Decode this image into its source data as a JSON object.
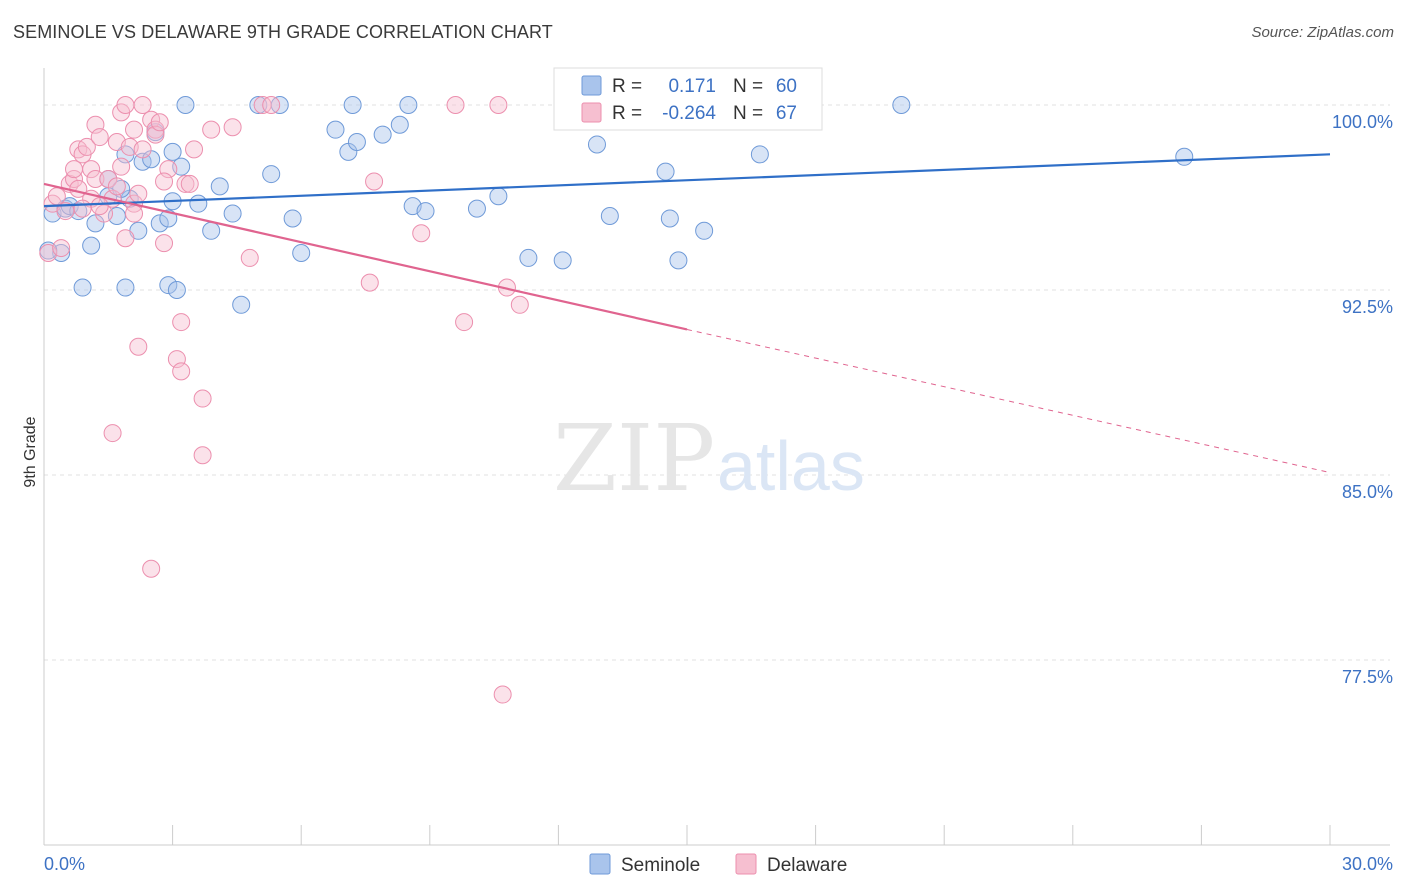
{
  "title": "SEMINOLE VS DELAWARE 9TH GRADE CORRELATION CHART",
  "source": "Source: ZipAtlas.com",
  "watermark": {
    "zip": "ZIP",
    "atlas": "atlas"
  },
  "chart_data": {
    "type": "scatter",
    "ylabel": "9th Grade",
    "xlim": [
      0,
      30
    ],
    "ylim": [
      70.0,
      101.5
    ],
    "x_tick_labels": [
      "0.0%",
      "30.0%"
    ],
    "y_ticks": [
      {
        "value": 100.0,
        "label": "100.0%"
      },
      {
        "value": 92.5,
        "label": "92.5%"
      },
      {
        "value": 85.0,
        "label": "85.0%"
      },
      {
        "value": 77.5,
        "label": "77.5%"
      }
    ],
    "grid": true,
    "legend": {
      "placement": "top-center",
      "rows": [
        {
          "r_label": "R =",
          "r_value": "0.171",
          "n_label": "N =",
          "n_value": "60"
        },
        {
          "r_label": "R =",
          "r_value": "-0.264",
          "n_label": "N =",
          "n_value": "67"
        }
      ]
    },
    "colors": {
      "seminole": "#a9c4ec",
      "seminole_stroke": "#6f9ad8",
      "seminole_line": "#2f6fc8",
      "delaware": "#f6bfd0",
      "delaware_stroke": "#ec8fae",
      "delaware_line": "#e0648f",
      "tick_color": "#3d72c4"
    },
    "series": [
      {
        "name": "Seminole",
        "trend": {
          "x": [
            0.0,
            30.0
          ],
          "y": [
            95.9,
            98.0
          ]
        },
        "points": [
          [
            0.2,
            95.6
          ],
          [
            0.4,
            94.0
          ],
          [
            0.5,
            95.8
          ],
          [
            0.6,
            95.9
          ],
          [
            0.8,
            95.7
          ],
          [
            0.9,
            92.6
          ],
          [
            1.1,
            94.3
          ],
          [
            1.2,
            95.2
          ],
          [
            1.5,
            96.3
          ],
          [
            1.5,
            97.0
          ],
          [
            1.7,
            95.5
          ],
          [
            1.9,
            92.6
          ],
          [
            1.9,
            98.0
          ],
          [
            2.0,
            96.2
          ],
          [
            2.2,
            94.9
          ],
          [
            2.3,
            97.7
          ],
          [
            2.5,
            97.8
          ],
          [
            2.6,
            98.9
          ],
          [
            2.7,
            95.2
          ],
          [
            2.9,
            92.7
          ],
          [
            3.0,
            98.1
          ],
          [
            3.1,
            92.5
          ],
          [
            3.2,
            97.5
          ],
          [
            3.3,
            100.0
          ],
          [
            3.6,
            96.0
          ],
          [
            3.9,
            94.9
          ],
          [
            4.1,
            96.7
          ],
          [
            4.4,
            95.6
          ],
          [
            4.6,
            91.9
          ],
          [
            5.0,
            100.0
          ],
          [
            5.3,
            97.2
          ],
          [
            5.5,
            100.0
          ],
          [
            5.8,
            95.4
          ],
          [
            6.0,
            94.0
          ],
          [
            6.8,
            99.0
          ],
          [
            7.1,
            98.1
          ],
          [
            7.3,
            98.5
          ],
          [
            7.2,
            100.0
          ],
          [
            7.9,
            98.8
          ],
          [
            8.3,
            99.2
          ],
          [
            8.5,
            100.0
          ],
          [
            8.6,
            95.9
          ],
          [
            8.9,
            95.7
          ],
          [
            10.1,
            95.8
          ],
          [
            10.6,
            96.3
          ],
          [
            11.3,
            93.8
          ],
          [
            12.1,
            93.7
          ],
          [
            12.9,
            98.4
          ],
          [
            13.2,
            95.5
          ],
          [
            14.5,
            97.3
          ],
          [
            14.6,
            95.4
          ],
          [
            14.8,
            93.7
          ],
          [
            15.4,
            94.9
          ],
          [
            16.7,
            98.0
          ],
          [
            20.0,
            100.0
          ],
          [
            26.6,
            97.9
          ],
          [
            0.1,
            94.1
          ],
          [
            1.8,
            96.6
          ],
          [
            3.0,
            96.1
          ],
          [
            2.9,
            95.4
          ]
        ]
      },
      {
        "name": "Delaware",
        "trend": {
          "x": [
            0.0,
            15.0
          ],
          "y": [
            96.8,
            90.9
          ]
        },
        "trend_dashed": {
          "x": [
            15.0,
            30.0
          ],
          "y": [
            90.9,
            85.1
          ]
        },
        "points": [
          [
            0.1,
            94.0
          ],
          [
            0.2,
            96.0
          ],
          [
            0.3,
            96.3
          ],
          [
            0.4,
            94.2
          ],
          [
            0.5,
            95.7
          ],
          [
            0.6,
            96.8
          ],
          [
            0.7,
            97.0
          ],
          [
            0.7,
            97.4
          ],
          [
            0.8,
            98.2
          ],
          [
            0.8,
            96.6
          ],
          [
            0.9,
            98.0
          ],
          [
            1.0,
            98.3
          ],
          [
            1.1,
            97.4
          ],
          [
            1.1,
            96.2
          ],
          [
            1.2,
            97.0
          ],
          [
            1.2,
            99.2
          ],
          [
            1.3,
            98.7
          ],
          [
            1.4,
            95.6
          ],
          [
            1.5,
            97.0
          ],
          [
            1.6,
            96.2
          ],
          [
            1.7,
            96.7
          ],
          [
            1.7,
            98.5
          ],
          [
            1.8,
            97.5
          ],
          [
            1.8,
            99.7
          ],
          [
            1.9,
            100.0
          ],
          [
            1.9,
            94.6
          ],
          [
            2.0,
            98.3
          ],
          [
            2.1,
            99.0
          ],
          [
            2.1,
            96.0
          ],
          [
            2.1,
            95.6
          ],
          [
            2.2,
            96.4
          ],
          [
            2.3,
            98.2
          ],
          [
            2.3,
            100.0
          ],
          [
            2.5,
            99.4
          ],
          [
            2.6,
            99.0
          ],
          [
            2.6,
            98.8
          ],
          [
            2.7,
            99.3
          ],
          [
            2.8,
            94.4
          ],
          [
            2.9,
            97.4
          ],
          [
            3.1,
            89.7
          ],
          [
            3.2,
            89.2
          ],
          [
            3.2,
            91.2
          ],
          [
            3.3,
            96.8
          ],
          [
            3.4,
            96.8
          ],
          [
            3.5,
            98.2
          ],
          [
            3.7,
            88.1
          ],
          [
            3.7,
            85.8
          ],
          [
            3.9,
            99.0
          ],
          [
            4.4,
            99.1
          ],
          [
            4.8,
            93.8
          ],
          [
            5.1,
            100.0
          ],
          [
            5.3,
            100.0
          ],
          [
            7.6,
            92.8
          ],
          [
            7.7,
            96.9
          ],
          [
            8.8,
            94.8
          ],
          [
            9.6,
            100.0
          ],
          [
            9.8,
            91.2
          ],
          [
            10.6,
            100.0
          ],
          [
            10.8,
            92.6
          ],
          [
            11.1,
            91.9
          ],
          [
            1.6,
            86.7
          ],
          [
            2.2,
            90.2
          ],
          [
            2.5,
            81.2
          ],
          [
            10.7,
            76.1
          ],
          [
            0.9,
            95.8
          ],
          [
            1.3,
            95.9
          ],
          [
            2.8,
            96.9
          ]
        ]
      }
    ]
  },
  "bottom_legend": [
    "Seminole",
    "Delaware"
  ]
}
